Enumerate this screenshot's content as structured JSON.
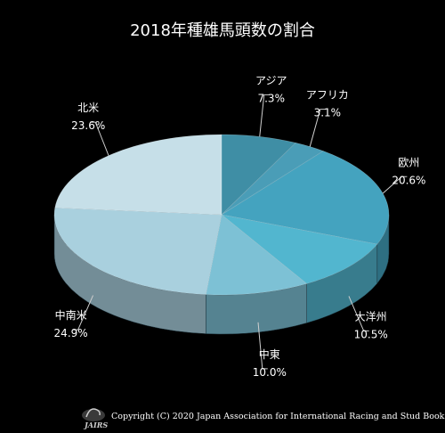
{
  "chart_data": {
    "type": "pie",
    "title": "2018年種雄馬頭数の割合",
    "slices": [
      {
        "label": "アジア",
        "value": 7.3,
        "value_text": "7.3%",
        "color": "#3f8ea5"
      },
      {
        "label": "アフリカ",
        "value": 3.1,
        "value_text": "3.1%",
        "color": "#4a9db7"
      },
      {
        "label": "欧州",
        "value": 20.6,
        "value_text": "20.6%",
        "color": "#44a3bf"
      },
      {
        "label": "大洋州",
        "value": 10.5,
        "value_text": "10.5%",
        "color": "#52b6cf"
      },
      {
        "label": "中東",
        "value": 10.0,
        "value_text": "10.0%",
        "color": "#7dc1d5"
      },
      {
        "label": "中南米",
        "value": 24.9,
        "value_text": "24.9%",
        "color": "#a9d0de"
      },
      {
        "label": "北米",
        "value": 23.6,
        "value_text": "23.6%",
        "color": "#c6dfe8"
      }
    ],
    "style": "3d-pie",
    "legend": "none",
    "data_labels": "outside with leader lines",
    "background": "#000000"
  },
  "footer": {
    "copyright": "Copyright (C) 2020 Japan Association for International Racing and Stud Book.",
    "logo_text": "JAIRS"
  }
}
